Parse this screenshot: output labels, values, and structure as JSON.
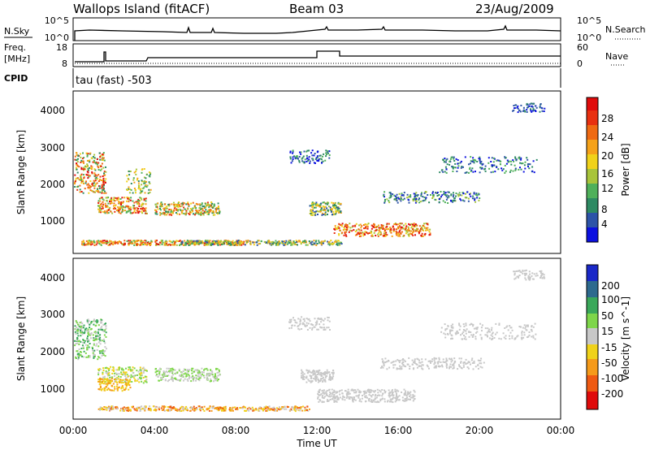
{
  "header": {
    "station": "Wallops Island (fitACF)",
    "beam": "Beam 03",
    "date": "23/Aug/2009"
  },
  "sky_panel": {
    "left_label": "N.Sky",
    "right_label": "N.Search",
    "left_ticks": [
      "10^5",
      "10^0"
    ],
    "right_ticks": [
      "10^5",
      "10^0"
    ]
  },
  "freq_panel": {
    "left_label_line1": "Freq.",
    "left_label_line2": "[MHz]",
    "right_label": "Nave",
    "left_ticks": [
      "18",
      "8"
    ],
    "right_ticks": [
      "60",
      "0"
    ]
  },
  "cpid": {
    "label": "CPID",
    "value": "tau (fast) -503"
  },
  "chart_data": [
    {
      "type": "heatmap",
      "title": "",
      "ylabel": "Slant Range [km]",
      "ylim": [
        200,
        4600
      ],
      "y_ticks": [
        "1000",
        "2000",
        "3000",
        "4000"
      ],
      "colorbar": {
        "label": "Power [dB]",
        "ticks": [
          "4",
          "8",
          "12",
          "16",
          "20",
          "24",
          "28"
        ],
        "colors": [
          "#0b10e0",
          "#2d54a8",
          "#2e8a63",
          "#4fb05a",
          "#a8c43a",
          "#f0d21a",
          "#f5a21a",
          "#ef6a12",
          "#e83010",
          "#e00b0b"
        ]
      }
    },
    {
      "type": "heatmap",
      "title": "",
      "ylabel": "Slant Range [km]",
      "ylim": [
        200,
        4600
      ],
      "y_ticks": [
        "1000",
        "2000",
        "3000",
        "4000"
      ],
      "colorbar": {
        "label": "Velocity [m s^-1]",
        "ticks": [
          "200",
          "100",
          "50",
          "15",
          "-15",
          "-50",
          "-100",
          "-200"
        ],
        "colors": [
          "#1a28c8",
          "#2e6a8e",
          "#3aa85a",
          "#7ed64a",
          "#c8c8c8",
          "#f0d21a",
          "#f59a1a",
          "#ef5a12",
          "#e00b0b"
        ]
      }
    }
  ],
  "x_axis": {
    "ticks": [
      "00:00",
      "04:00",
      "08:00",
      "12:00",
      "16:00",
      "20:00",
      "00:00"
    ],
    "label": "Time UT"
  }
}
